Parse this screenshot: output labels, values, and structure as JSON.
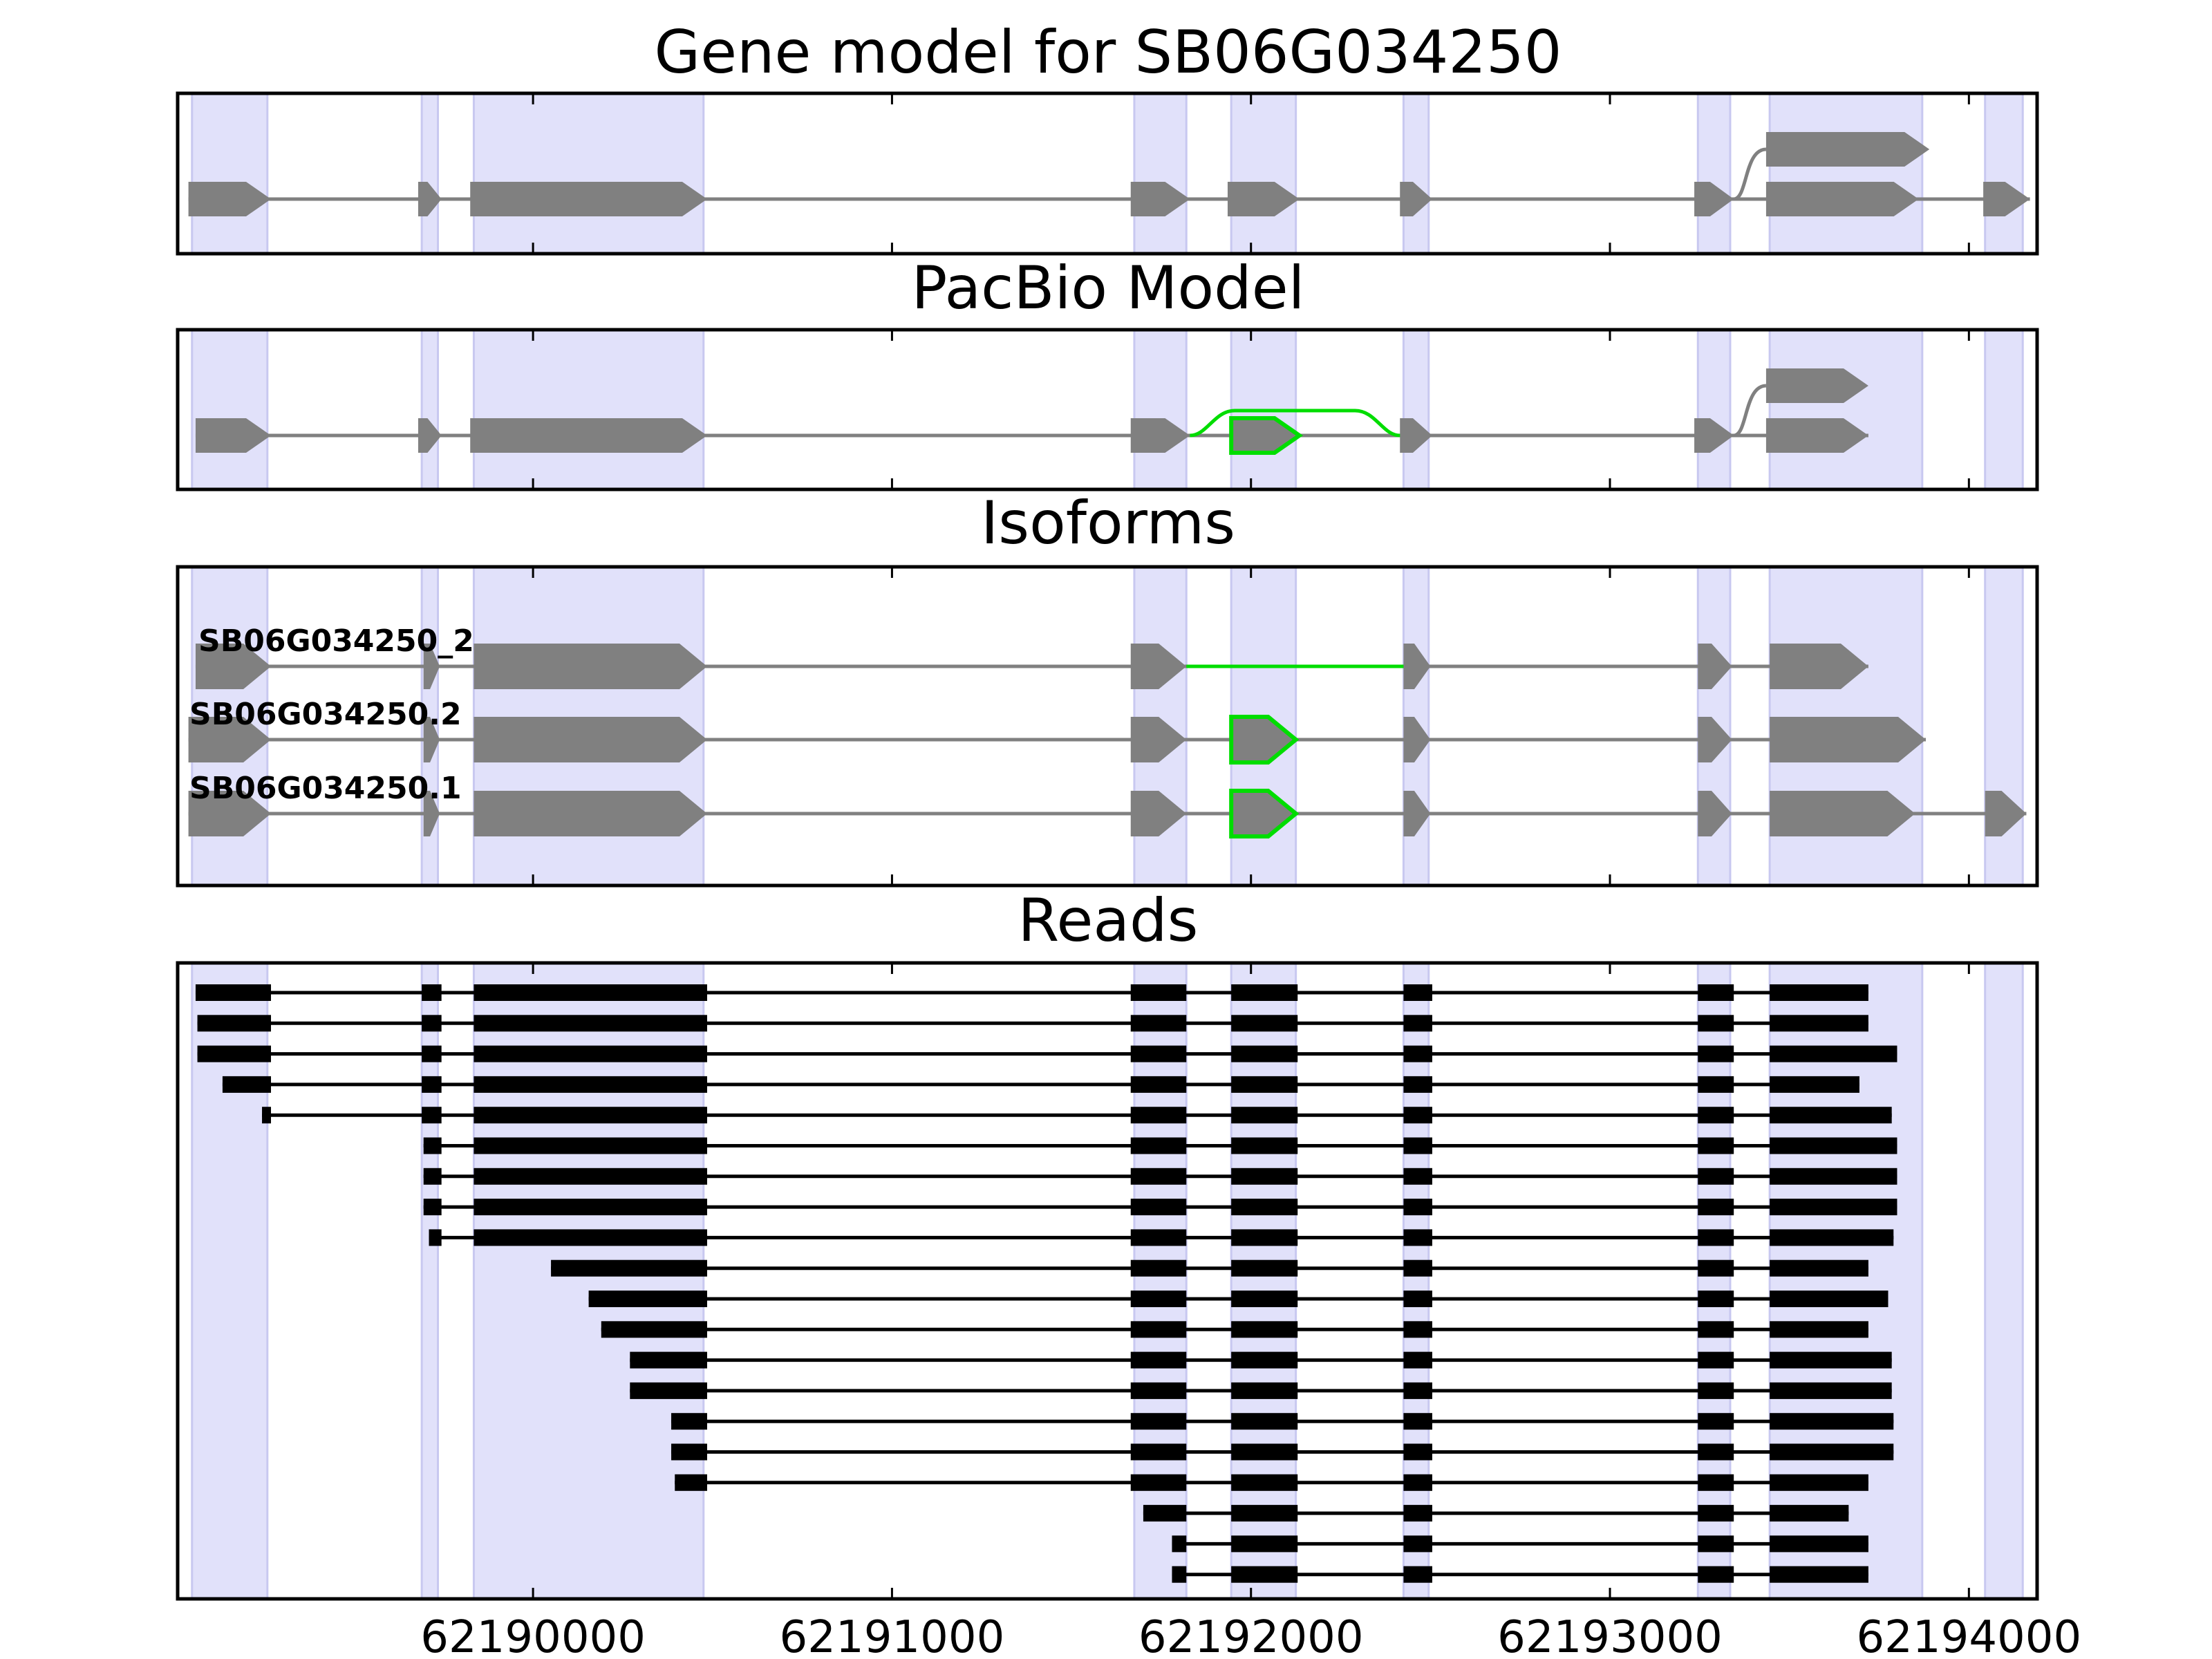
{
  "figure": {
    "panels": [
      {
        "key": "gene",
        "title": "Gene model for SB06G034250"
      },
      {
        "key": "pacbio",
        "title": "PacBio Model"
      },
      {
        "key": "isoforms",
        "title": "Isoforms"
      },
      {
        "key": "reads",
        "title": "Reads"
      }
    ],
    "x_ticks": [
      "62190000",
      "62191000",
      "62192000",
      "62193000",
      "62194000"
    ],
    "colors": {
      "band": "#e1e1fa",
      "exon": "#808080",
      "intron": "#808080",
      "highlight": "#00dd00",
      "read": "#000000"
    }
  },
  "chart_data": {
    "type": "gene-structure",
    "xlim": [
      62189010,
      62194190
    ],
    "exon_bands": [
      [
        62189050,
        62189260
      ],
      [
        62189690,
        62189735
      ],
      [
        62189835,
        62190475
      ],
      [
        62191675,
        62191820
      ],
      [
        62191945,
        62192125
      ],
      [
        62192425,
        62192495
      ],
      [
        62193245,
        62193335
      ],
      [
        62193445,
        62193870
      ],
      [
        62194045,
        62194150
      ]
    ],
    "gene_model": {
      "transcripts": [
        {
          "exons": [
            [
              62189040,
              62189270
            ],
            [
              62189680,
              62189745
            ],
            [
              62189825,
              62190485
            ],
            [
              62191665,
              62191830
            ],
            [
              62191935,
              62192135
            ],
            [
              62192415,
              62192505
            ],
            [
              62193235,
              62193345
            ],
            [
              62193435,
              62193860
            ],
            [
              62194040,
              62194170
            ]
          ]
        },
        {
          "exons": [
            [
              62193435,
              62193890
            ]
          ],
          "branch_from": 62193345
        }
      ]
    },
    "pacbio_model": {
      "transcripts": [
        {
          "exons": [
            [
              62189060,
              62189270
            ],
            [
              62189680,
              62189745
            ],
            [
              62189825,
              62190485
            ],
            [
              62191665,
              62191830
            ],
            [
              62191945,
              62192135
            ],
            [
              62192415,
              62192505
            ],
            [
              62193235,
              62193345
            ],
            [
              62193435,
              62193720
            ]
          ],
          "highlight_exons": [
            4
          ]
        },
        {
          "exons": [
            [
              62193435,
              62193720
            ]
          ],
          "branch_from": 62193345
        }
      ],
      "alternative_junction": [
        62191830,
        62192415
      ]
    },
    "isoforms": [
      {
        "name": "SB06G034250_2",
        "exons": [
          [
            62189060,
            62189270
          ],
          [
            62189695,
            62189740
          ],
          [
            62189835,
            62190485
          ],
          [
            62191665,
            62191820
          ],
          [
            62192425,
            62192500
          ],
          [
            62193245,
            62193340
          ],
          [
            62193445,
            62193720
          ]
        ],
        "highlight_junction": [
          62191820,
          62192425
        ]
      },
      {
        "name": "SB06G034250.2",
        "exons": [
          [
            62189040,
            62189270
          ],
          [
            62189695,
            62189740
          ],
          [
            62189835,
            62190485
          ],
          [
            62191665,
            62191820
          ],
          [
            62191945,
            62192125
          ],
          [
            62192425,
            62192500
          ],
          [
            62193245,
            62193340
          ],
          [
            62193445,
            62193880
          ]
        ],
        "highlight_exons": [
          4
        ]
      },
      {
        "name": "SB06G034250.1",
        "exons": [
          [
            62189040,
            62189270
          ],
          [
            62189695,
            62189740
          ],
          [
            62189835,
            62190485
          ],
          [
            62191665,
            62191820
          ],
          [
            62191945,
            62192125
          ],
          [
            62192425,
            62192500
          ],
          [
            62193245,
            62193340
          ],
          [
            62193445,
            62193850
          ],
          [
            62194045,
            62194160
          ]
        ],
        "highlight_exons": [
          4
        ]
      }
    ],
    "reads": [
      {
        "start": 62189060,
        "end": 62193720,
        "skip_exon5": false
      },
      {
        "start": 62189065,
        "end": 62193720,
        "skip_exon5": false
      },
      {
        "start": 62189065,
        "end": 62193800,
        "skip_exon5": false
      },
      {
        "start": 62189135,
        "end": 62193695,
        "skip_exon5": false
      },
      {
        "start": 62189245,
        "end": 62193785,
        "skip_exon5": false
      },
      {
        "start": 62189695,
        "end": 62193800,
        "skip_exon5": false
      },
      {
        "start": 62189695,
        "end": 62193800,
        "skip_exon5": false
      },
      {
        "start": 62189695,
        "end": 62193800,
        "skip_exon5": false
      },
      {
        "start": 62189710,
        "end": 62193790,
        "skip_exon5": false
      },
      {
        "start": 62190050,
        "end": 62193720,
        "skip_exon5": true
      },
      {
        "start": 62190155,
        "end": 62193775,
        "skip_exon5": true
      },
      {
        "start": 62190190,
        "end": 62193720,
        "skip_exon5": true
      },
      {
        "start": 62190270,
        "end": 62193785,
        "skip_exon5": true
      },
      {
        "start": 62190270,
        "end": 62193785,
        "skip_exon5": true
      },
      {
        "start": 62190385,
        "end": 62193790,
        "skip_exon5": true
      },
      {
        "start": 62190385,
        "end": 62193790,
        "skip_exon5": true
      },
      {
        "start": 62190395,
        "end": 62193720,
        "skip_exon5": true
      },
      {
        "start": 62191700,
        "end": 62193665,
        "skip_exon5": false
      },
      {
        "start": 62191780,
        "end": 62193720,
        "skip_exon5": false
      },
      {
        "start": 62191780,
        "end": 62193720,
        "skip_exon5": false
      }
    ],
    "read_exons": [
      [
        62189050,
        62189270
      ],
      [
        62189690,
        62189745
      ],
      [
        62189835,
        62190485
      ],
      [
        62191665,
        62191820
      ],
      [
        62191945,
        62192130
      ],
      [
        62192425,
        62192505
      ],
      [
        62193245,
        62193345
      ],
      [
        62193445,
        62193870
      ]
    ]
  }
}
